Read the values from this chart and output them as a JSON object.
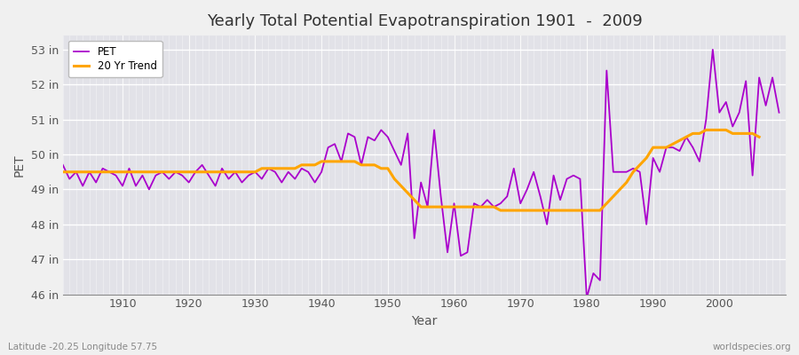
{
  "title": "Yearly Total Potential Evapotranspiration 1901  -  2009",
  "xlabel": "Year",
  "ylabel": "PET",
  "bottom_left_label": "Latitude -20.25 Longitude 57.75",
  "bottom_right_label": "worldspecies.org",
  "pet_color": "#AA00CC",
  "trend_color": "#FFA500",
  "background_color": "#F0F0F0",
  "plot_bg_color": "#E2E2E8",
  "ylim": [
    46,
    53.4
  ],
  "yticks": [
    46,
    47,
    48,
    49,
    50,
    51,
    52,
    53
  ],
  "ytick_labels": [
    "46 in",
    "47 in",
    "48 in",
    "49 in",
    "50 in",
    "51 in",
    "52 in",
    "53 in"
  ],
  "xlim": [
    1901,
    2010
  ],
  "xticks": [
    1910,
    1920,
    1930,
    1940,
    1950,
    1960,
    1970,
    1980,
    1990,
    2000
  ],
  "years": [
    1901,
    1902,
    1903,
    1904,
    1905,
    1906,
    1907,
    1908,
    1909,
    1910,
    1911,
    1912,
    1913,
    1914,
    1915,
    1916,
    1917,
    1918,
    1919,
    1920,
    1921,
    1922,
    1923,
    1924,
    1925,
    1926,
    1927,
    1928,
    1929,
    1930,
    1931,
    1932,
    1933,
    1934,
    1935,
    1936,
    1937,
    1938,
    1939,
    1940,
    1941,
    1942,
    1943,
    1944,
    1945,
    1946,
    1947,
    1948,
    1949,
    1950,
    1951,
    1952,
    1953,
    1954,
    1955,
    1956,
    1957,
    1958,
    1959,
    1960,
    1961,
    1962,
    1963,
    1964,
    1965,
    1966,
    1967,
    1968,
    1969,
    1970,
    1971,
    1972,
    1973,
    1974,
    1975,
    1976,
    1977,
    1978,
    1979,
    1980,
    1981,
    1982,
    1983,
    1984,
    1985,
    1986,
    1987,
    1988,
    1989,
    1990,
    1991,
    1992,
    1993,
    1994,
    1995,
    1996,
    1997,
    1998,
    1999,
    2000,
    2001,
    2002,
    2003,
    2004,
    2005,
    2006,
    2007,
    2008,
    2009
  ],
  "pet_values": [
    49.7,
    49.3,
    49.5,
    49.1,
    49.5,
    49.2,
    49.6,
    49.5,
    49.4,
    49.1,
    49.6,
    49.1,
    49.4,
    49.0,
    49.4,
    49.5,
    49.3,
    49.5,
    49.4,
    49.2,
    49.5,
    49.7,
    49.4,
    49.1,
    49.6,
    49.3,
    49.5,
    49.2,
    49.4,
    49.5,
    49.3,
    49.6,
    49.5,
    49.2,
    49.5,
    49.3,
    49.6,
    49.5,
    49.2,
    49.5,
    50.2,
    50.3,
    49.8,
    50.6,
    50.5,
    49.7,
    50.5,
    50.4,
    50.7,
    50.5,
    50.1,
    49.7,
    50.6,
    47.6,
    49.2,
    48.5,
    50.7,
    48.8,
    47.2,
    48.6,
    47.1,
    47.2,
    48.6,
    48.5,
    48.7,
    48.5,
    48.6,
    48.8,
    49.6,
    48.6,
    49.0,
    49.5,
    48.8,
    48.0,
    49.4,
    48.7,
    49.3,
    49.4,
    49.3,
    45.9,
    46.6,
    46.4,
    52.4,
    49.5,
    49.5,
    49.5,
    49.6,
    49.5,
    48.0,
    49.9,
    49.5,
    50.2,
    50.2,
    50.1,
    50.5,
    50.2,
    49.8,
    51.0,
    53.0,
    51.2,
    51.5,
    50.8,
    51.2,
    52.1,
    49.4,
    52.2,
    51.4,
    52.2,
    51.2
  ],
  "trend_values": [
    49.5,
    49.5,
    49.5,
    49.5,
    49.5,
    49.5,
    49.5,
    49.5,
    49.5,
    49.5,
    49.5,
    49.5,
    49.5,
    49.5,
    49.5,
    49.5,
    49.5,
    49.5,
    49.5,
    49.5,
    49.5,
    49.5,
    49.5,
    49.5,
    49.5,
    49.5,
    49.5,
    49.5,
    49.5,
    49.5,
    49.6,
    49.6,
    49.6,
    49.6,
    49.6,
    49.6,
    49.7,
    49.7,
    49.7,
    49.8,
    49.8,
    49.8,
    49.8,
    49.8,
    49.8,
    49.7,
    49.7,
    49.7,
    49.6,
    49.6,
    49.3,
    49.1,
    48.9,
    48.7,
    48.5,
    48.5,
    48.5,
    48.5,
    48.5,
    48.5,
    48.5,
    48.5,
    48.5,
    48.5,
    48.5,
    48.5,
    48.4,
    48.4,
    48.4,
    48.4,
    48.4,
    48.4,
    48.4,
    48.4,
    48.4,
    48.4,
    48.4,
    48.4,
    48.4,
    48.4,
    48.4,
    48.4,
    48.6,
    48.8,
    49.0,
    49.2,
    49.5,
    49.7,
    49.9,
    50.2,
    50.2,
    50.2,
    50.3,
    50.4,
    50.5,
    50.6,
    50.6,
    50.7,
    50.7,
    50.7,
    50.7,
    50.6,
    50.6,
    50.6,
    50.6,
    50.5,
    null,
    null,
    null
  ]
}
